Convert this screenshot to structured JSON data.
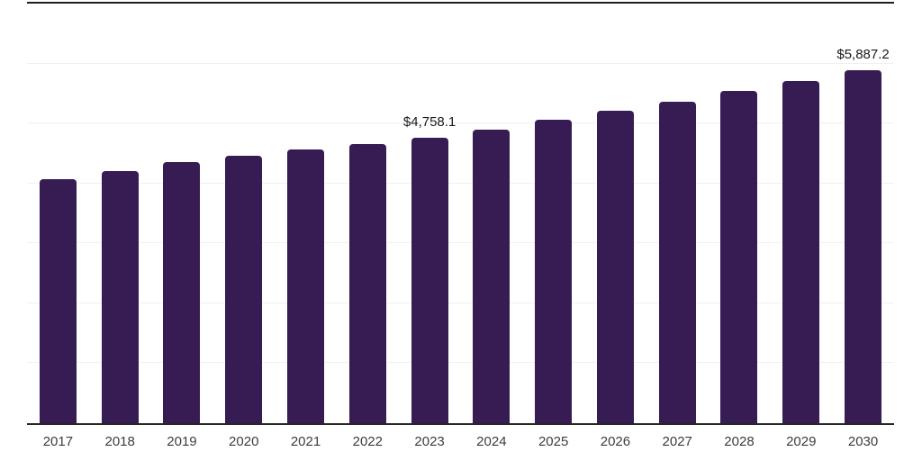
{
  "chart": {
    "background": "#ffffff",
    "bar_color": "#371C54",
    "gridline_color": "#f0f0f2",
    "top_line_color": "#1f1f1f",
    "axis_line_color": "#262626",
    "value_label_color": "#1a1a1a",
    "tick_label_color": "#3d3d3d"
  },
  "chart_data": {
    "type": "bar",
    "categories": [
      "2017",
      "2018",
      "2019",
      "2020",
      "2021",
      "2022",
      "2023",
      "2024",
      "2025",
      "2026",
      "2027",
      "2028",
      "2029",
      "2030"
    ],
    "values": [
      4070,
      4205,
      4350,
      4460,
      4570,
      4650,
      4758.1,
      4890,
      5055,
      5215,
      5370,
      5545,
      5715,
      5887.2
    ],
    "annotations": [
      {
        "category": "2023",
        "text": "$4,758.1"
      },
      {
        "category": "2030",
        "text": "$5,887.2"
      }
    ],
    "title": "",
    "xlabel": "",
    "ylabel": "",
    "ylim": [
      0,
      7000
    ],
    "gridline_step": 1000,
    "grid": "horizontal",
    "legend": "none",
    "y_tick_labels_visible": false
  }
}
